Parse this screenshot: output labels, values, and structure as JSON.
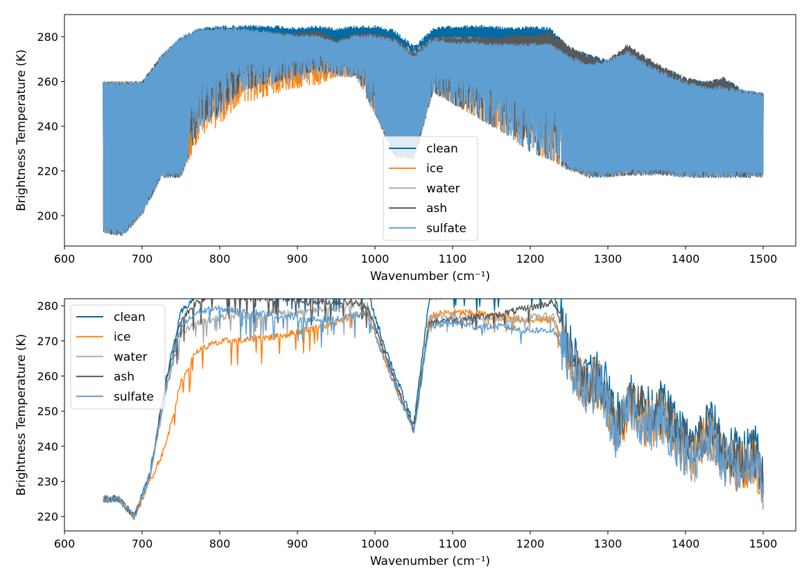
{
  "chart_data": [
    {
      "type": "line",
      "xlabel": "Wavenumber (cm⁻¹)",
      "ylabel": "Brightness Temperature (K)",
      "xlim": [
        600,
        1542
      ],
      "ylim": [
        186.4,
        289.9
      ],
      "xticks": [
        600,
        700,
        800,
        900,
        1000,
        1100,
        1200,
        1300,
        1400,
        1500
      ],
      "yticks": [
        200,
        220,
        240,
        260,
        280
      ],
      "grid": false,
      "legend_position": "lower-center",
      "x": [
        650,
        675,
        700,
        725,
        750,
        775,
        800,
        825,
        850,
        875,
        900,
        925,
        950,
        975,
        1000,
        1025,
        1050,
        1075,
        1100,
        1125,
        1150,
        1175,
        1200,
        1225,
        1250,
        1275,
        1300,
        1325,
        1350,
        1375,
        1400,
        1425,
        1450,
        1475,
        1500
      ],
      "series": [
        {
          "name": "clean",
          "color": "#006ba4",
          "max": [
            260,
            260,
            260,
            272,
            280,
            284,
            285,
            285,
            285,
            285,
            284,
            285,
            284,
            285,
            285,
            283,
            276,
            284,
            285,
            285,
            285,
            284,
            285,
            284,
            276,
            272,
            270,
            276,
            270,
            266,
            262,
            260,
            262,
            256,
            255
          ],
          "min": [
            192,
            191,
            200,
            217,
            217,
            242,
            248,
            258,
            262,
            264,
            266,
            268,
            264,
            264,
            250,
            230,
            228,
            258,
            254,
            248,
            244,
            240,
            232,
            228,
            222,
            217,
            217,
            218,
            218,
            218,
            217,
            217,
            217,
            217,
            217
          ]
        },
        {
          "name": "ice",
          "color": "#ff800e",
          "max": [
            260,
            260,
            260,
            272,
            279,
            270,
            272,
            275,
            275,
            276,
            276,
            277,
            266,
            270,
            275,
            274,
            270,
            278,
            278,
            278,
            277,
            277,
            277,
            277,
            271,
            267,
            269,
            273,
            267,
            263,
            259,
            257,
            257,
            255,
            254
          ],
          "min": [
            192,
            191,
            200,
            217,
            217,
            236,
            240,
            250,
            252,
            255,
            257,
            258,
            262,
            262,
            245,
            226,
            225,
            255,
            250,
            245,
            240,
            235,
            228,
            225,
            220,
            217,
            217,
            218,
            218,
            218,
            217,
            217,
            217,
            217,
            217
          ]
        },
        {
          "name": "water",
          "color": "#ababab",
          "max": [
            260,
            260,
            260,
            272,
            280,
            276,
            278,
            276,
            277,
            277,
            278,
            279,
            272,
            276,
            280,
            279,
            274,
            280,
            280,
            280,
            279,
            279,
            279,
            279,
            272,
            268,
            269,
            274,
            268,
            264,
            260,
            258,
            258,
            256,
            255
          ],
          "min": [
            192,
            191,
            200,
            217,
            217,
            238,
            244,
            254,
            256,
            258,
            260,
            262,
            262,
            262,
            245,
            226,
            225,
            255,
            250,
            245,
            240,
            235,
            228,
            225,
            220,
            217,
            217,
            218,
            218,
            218,
            217,
            217,
            217,
            217,
            217
          ]
        },
        {
          "name": "ash",
          "color": "#595959",
          "max": [
            260,
            260,
            260,
            272,
            280,
            283,
            284,
            284,
            283,
            282,
            282,
            283,
            279,
            282,
            282,
            280,
            273,
            280,
            280,
            280,
            280,
            281,
            281,
            282,
            276,
            272,
            270,
            277,
            271,
            266,
            262,
            260,
            262,
            256,
            255
          ],
          "min": [
            192,
            191,
            200,
            217,
            217,
            240,
            245,
            255,
            258,
            260,
            262,
            265,
            262,
            262,
            245,
            226,
            225,
            255,
            250,
            245,
            240,
            235,
            228,
            225,
            220,
            217,
            217,
            218,
            218,
            218,
            217,
            217,
            217,
            217,
            217
          ]
        },
        {
          "name": "sulfate",
          "color": "#5f9ed1",
          "max": [
            260,
            260,
            260,
            272,
            280,
            284,
            284,
            284,
            283,
            282,
            281,
            281,
            278,
            281,
            281,
            279,
            272,
            279,
            278,
            278,
            277,
            277,
            277,
            277,
            272,
            268,
            270,
            274,
            268,
            264,
            260,
            258,
            258,
            256,
            255
          ],
          "min": [
            192,
            191,
            200,
            217,
            217,
            240,
            245,
            255,
            258,
            260,
            262,
            265,
            262,
            262,
            245,
            226,
            225,
            255,
            250,
            245,
            240,
            235,
            228,
            225,
            220,
            217,
            217,
            218,
            218,
            218,
            217,
            217,
            217,
            217,
            217
          ]
        }
      ]
    },
    {
      "type": "line",
      "xlabel": "Wavenumber (cm⁻¹)",
      "ylabel": "Brightness Temperature (K)",
      "xlim": [
        600,
        1542
      ],
      "ylim": [
        215.9,
        282.0
      ],
      "xticks": [
        600,
        700,
        800,
        900,
        1000,
        1100,
        1200,
        1300,
        1400,
        1500
      ],
      "yticks": [
        220,
        230,
        240,
        250,
        260,
        270,
        280
      ],
      "grid": false,
      "legend_position": "upper-left",
      "x": [
        650,
        670,
        690,
        710,
        730,
        750,
        770,
        790,
        810,
        830,
        850,
        870,
        890,
        910,
        930,
        950,
        970,
        990,
        1010,
        1030,
        1050,
        1070,
        1090,
        1110,
        1130,
        1150,
        1170,
        1190,
        1210,
        1230,
        1250,
        1270,
        1290,
        1310,
        1330,
        1350,
        1370,
        1390,
        1410,
        1430,
        1450,
        1470,
        1490,
        1500
      ],
      "series": [
        {
          "name": "clean",
          "color": "#006ba4",
          "values": [
            225,
            225,
            220,
            232,
            258,
            278,
            283,
            284,
            284,
            284,
            284,
            284,
            284,
            284,
            284,
            284,
            284,
            284,
            270,
            258,
            246,
            282,
            283,
            283,
            283,
            283,
            283,
            283,
            283,
            283,
            270,
            260,
            262,
            248,
            255,
            250,
            252,
            245,
            240,
            248,
            240,
            238,
            240,
            230
          ]
        },
        {
          "name": "ice",
          "color": "#ff800e",
          "values": [
            225,
            225,
            220,
            230,
            240,
            258,
            267,
            269,
            270,
            270,
            271,
            271,
            272,
            273,
            274,
            275,
            277,
            278,
            266,
            255,
            244,
            277,
            278,
            278,
            278,
            277,
            277,
            276,
            276,
            276,
            265,
            256,
            258,
            244,
            252,
            246,
            248,
            242,
            236,
            244,
            236,
            234,
            236,
            229
          ]
        },
        {
          "name": "water",
          "color": "#ababab",
          "values": [
            225,
            225,
            220,
            231,
            255,
            272,
            275,
            276,
            277,
            277,
            277,
            278,
            278,
            278,
            279,
            279,
            280,
            280,
            268,
            256,
            245,
            277,
            277,
            277,
            276,
            276,
            276,
            276,
            277,
            277,
            265,
            256,
            258,
            244,
            252,
            246,
            248,
            242,
            236,
            244,
            236,
            234,
            236,
            229
          ]
        },
        {
          "name": "ash",
          "color": "#595959",
          "values": [
            225,
            225,
            220,
            232,
            257,
            276,
            281,
            283,
            283,
            282,
            282,
            282,
            282,
            281,
            281,
            281,
            281,
            280,
            268,
            256,
            245,
            275,
            276,
            276,
            277,
            277,
            278,
            279,
            280,
            281,
            268,
            258,
            260,
            246,
            254,
            248,
            250,
            244,
            238,
            246,
            238,
            236,
            238,
            230
          ]
        },
        {
          "name": "sulfate",
          "color": "#5f9ed1",
          "values": [
            225,
            225,
            220,
            232,
            255,
            274,
            278,
            279,
            279,
            278,
            278,
            277,
            277,
            276,
            276,
            276,
            277,
            278,
            266,
            255,
            244,
            274,
            275,
            275,
            274,
            274,
            274,
            273,
            273,
            273,
            264,
            255,
            257,
            243,
            251,
            245,
            247,
            241,
            235,
            243,
            235,
            233,
            235,
            229
          ]
        }
      ]
    }
  ]
}
